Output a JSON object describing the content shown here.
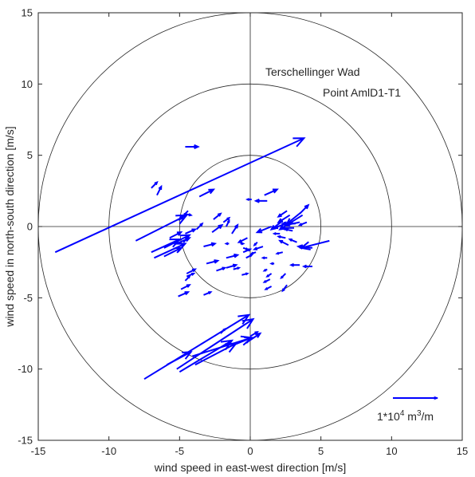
{
  "chart_data": {
    "type": "quiver",
    "title": "",
    "xlabel": "wind speed in east-west direction [m/s]",
    "ylabel": "wind speed in north-south direction [m/s]",
    "xlim": [
      -15,
      15
    ],
    "ylim": [
      -15,
      15
    ],
    "xticks": [
      -15,
      -10,
      -5,
      0,
      5,
      10,
      15
    ],
    "yticks": [
      -15,
      -10,
      -5,
      0,
      5,
      10,
      15
    ],
    "circle_radii": [
      5,
      10,
      15
    ],
    "axis_lines": true,
    "annotations": [
      "Terschellinger Wad",
      "Point AmlD1-T1"
    ],
    "scale_arrow": {
      "label": "1*10",
      "exponent": "4",
      "unit": " m",
      "unit_exponent": "3",
      "unit_tail": "/m"
    },
    "arrow_color": "#0000ff",
    "arrows": [
      {
        "x": -13.8,
        "y": -1.8,
        "u": 17.6,
        "v": 8.0
      },
      {
        "x": -8.1,
        "y": -1.0,
        "u": 3.6,
        "v": 1.8
      },
      {
        "x": -6.1,
        "y": -1.5,
        "u": 1.8,
        "v": 0.9
      },
      {
        "x": -7.0,
        "y": -1.8,
        "u": 2.0,
        "v": 0.9
      },
      {
        "x": -6.8,
        "y": -2.2,
        "u": 2.2,
        "v": 1.0
      },
      {
        "x": -6.1,
        "y": -2.1,
        "u": 1.2,
        "v": 0.6
      },
      {
        "x": -5.7,
        "y": -0.8,
        "u": 0.8,
        "v": 0.4
      },
      {
        "x": -5.2,
        "y": -1.2,
        "u": 0.9,
        "v": 0.4
      },
      {
        "x": -4.6,
        "y": -0.5,
        "u": 0.7,
        "v": 0.3
      },
      {
        "x": -6.6,
        "y": 2.2,
        "u": 0.3,
        "v": 0.6
      },
      {
        "x": -7.0,
        "y": 2.7,
        "u": 0.4,
        "v": 0.4
      },
      {
        "x": -4.6,
        "y": 5.6,
        "u": 0.9,
        "v": 0.0
      },
      {
        "x": -4.4,
        "y": 1.1,
        "u": -0.6,
        "v": -0.6
      },
      {
        "x": -3.6,
        "y": 2.1,
        "u": 1.0,
        "v": 0.5
      },
      {
        "x": -4.7,
        "y": 0.9,
        "u": 0.5,
        "v": -0.1
      },
      {
        "x": -3.8,
        "y": -0.2,
        "u": 0.4,
        "v": 0.4
      },
      {
        "x": -2.7,
        "y": -0.4,
        "u": 0.7,
        "v": 0.5
      },
      {
        "x": -2.6,
        "y": 0.5,
        "u": 0.5,
        "v": 0.4
      },
      {
        "x": -1.9,
        "y": 0.3,
        "u": 0.4,
        "v": 0.3
      },
      {
        "x": -1.3,
        "y": -0.5,
        "u": 0.4,
        "v": 0.6
      },
      {
        "x": -1.7,
        "y": 0.0,
        "u": 0.2,
        "v": 0.4
      },
      {
        "x": -1.5,
        "y": -1.2,
        "u": -0.2,
        "v": 0.0
      },
      {
        "x": -3.3,
        "y": -1.4,
        "u": 0.8,
        "v": 0.2
      },
      {
        "x": -1.7,
        "y": -2.2,
        "u": 0.8,
        "v": 0.2
      },
      {
        "x": -3.1,
        "y": -2.6,
        "u": 0.8,
        "v": 0.2
      },
      {
        "x": -1.7,
        "y": -2.9,
        "u": 0.7,
        "v": 0.2
      },
      {
        "x": -0.5,
        "y": -1.8,
        "u": 0.5,
        "v": 0.2
      },
      {
        "x": -0.3,
        "y": -2.2,
        "u": 0.4,
        "v": 0.2
      },
      {
        "x": -2.4,
        "y": -3.1,
        "u": 0.6,
        "v": 0.2
      },
      {
        "x": -1.2,
        "y": -3.0,
        "u": 0.4,
        "v": 0.1
      },
      {
        "x": -0.6,
        "y": -3.4,
        "u": 0.4,
        "v": 0.1
      },
      {
        "x": -0.7,
        "y": -1.2,
        "u": 0.2,
        "v": 0.0
      },
      {
        "x": -0.5,
        "y": -1.5,
        "u": 0.3,
        "v": -0.1
      },
      {
        "x": -4.5,
        "y": -3.3,
        "u": 0.6,
        "v": 0.3
      },
      {
        "x": -4.6,
        "y": -3.8,
        "u": 0.3,
        "v": 0.3
      },
      {
        "x": -5.1,
        "y": -4.9,
        "u": 0.7,
        "v": 0.3
      },
      {
        "x": -4.9,
        "y": -4.4,
        "u": 0.6,
        "v": 0.3
      },
      {
        "x": -4.5,
        "y": -3.5,
        "u": 0.5,
        "v": 0.2
      },
      {
        "x": -3.3,
        "y": -4.8,
        "u": 0.5,
        "v": 0.2
      },
      {
        "x": 1.2,
        "y": 1.8,
        "u": -0.8,
        "v": 0.0
      },
      {
        "x": 0.1,
        "y": 1.9,
        "u": -0.3,
        "v": 0.0
      },
      {
        "x": 1.0,
        "y": 2.2,
        "u": 0.9,
        "v": 0.4
      },
      {
        "x": 0.5,
        "y": -1.1,
        "u": -0.2,
        "v": -0.2
      },
      {
        "x": -0.2,
        "y": -0.8,
        "u": -0.6,
        "v": -0.3
      },
      {
        "x": 0.9,
        "y": -1.4,
        "u": -0.6,
        "v": -0.2
      },
      {
        "x": 0.4,
        "y": -1.8,
        "u": -0.3,
        "v": -0.1
      },
      {
        "x": 1.2,
        "y": -2.2,
        "u": -0.3,
        "v": 0.0
      },
      {
        "x": 1.2,
        "y": -3.0,
        "u": -0.2,
        "v": -0.1
      },
      {
        "x": 1.5,
        "y": -3.3,
        "u": -0.3,
        "v": -0.2
      },
      {
        "x": 1.4,
        "y": -3.7,
        "u": -0.4,
        "v": -0.2
      },
      {
        "x": 1.5,
        "y": -4.2,
        "u": -0.4,
        "v": -0.2
      },
      {
        "x": 1.7,
        "y": -2.6,
        "u": -0.2,
        "v": 0.0
      },
      {
        "x": 2.1,
        "y": -0.5,
        "u": -0.4,
        "v": 0.0
      },
      {
        "x": 2.5,
        "y": -0.8,
        "u": -0.5,
        "v": 0.1
      },
      {
        "x": 2.3,
        "y": -1.8,
        "u": -0.4,
        "v": -0.1
      },
      {
        "x": 2.5,
        "y": -3.3,
        "u": -0.3,
        "v": -0.3
      },
      {
        "x": 2.6,
        "y": -4.1,
        "u": -0.3,
        "v": -0.4
      },
      {
        "x": 2.5,
        "y": 0.2,
        "u": -0.8,
        "v": -0.3
      },
      {
        "x": 2.3,
        "y": 0.4,
        "u": -0.8,
        "v": -0.6
      },
      {
        "x": 2.8,
        "y": 0.8,
        "u": -0.8,
        "v": -0.5
      },
      {
        "x": 2.6,
        "y": 1.1,
        "u": -0.6,
        "v": -0.4
      },
      {
        "x": 3.7,
        "y": 0.8,
        "u": -1.6,
        "v": -1.0
      },
      {
        "x": 3.6,
        "y": 1.0,
        "u": -1.0,
        "v": -0.8
      },
      {
        "x": 3.5,
        "y": 0.3,
        "u": -1.0,
        "v": -0.2
      },
      {
        "x": 3.2,
        "y": 0.2,
        "u": -0.9,
        "v": 0.0
      },
      {
        "x": 3.1,
        "y": -0.1,
        "u": -0.9,
        "v": 0.0
      },
      {
        "x": 3.0,
        "y": -0.3,
        "u": -0.5,
        "v": 0.1
      },
      {
        "x": 3.5,
        "y": 0.9,
        "u": 0.6,
        "v": 0.6
      },
      {
        "x": 4.0,
        "y": 0.3,
        "u": -0.5,
        "v": -0.2
      },
      {
        "x": 3.3,
        "y": -1.1,
        "u": -0.5,
        "v": 0.2
      },
      {
        "x": 2.7,
        "y": -1.3,
        "u": -0.6,
        "v": 0.3
      },
      {
        "x": 4.4,
        "y": -1.5,
        "u": -1.0,
        "v": 0.1
      },
      {
        "x": 5.6,
        "y": -1.0,
        "u": -2.0,
        "v": -0.5
      },
      {
        "x": 4.4,
        "y": -2.8,
        "u": -0.6,
        "v": 0.0
      },
      {
        "x": 3.5,
        "y": -2.7,
        "u": -0.6,
        "v": 0.0
      },
      {
        "x": 1.5,
        "y": 0.0,
        "u": -1.0,
        "v": -0.4
      },
      {
        "x": -7.5,
        "y": -10.7,
        "u": 7.4,
        "v": 4.5
      },
      {
        "x": -5.2,
        "y": -10.0,
        "u": 5.4,
        "v": 3.5
      },
      {
        "x": -5.0,
        "y": -10.2,
        "u": 3.7,
        "v": 2.2
      },
      {
        "x": -4.1,
        "y": -9.1,
        "u": 4.2,
        "v": 1.3
      },
      {
        "x": -3.9,
        "y": -9.7,
        "u": 2.9,
        "v": 1.5
      },
      {
        "x": -5.9,
        "y": -9.7,
        "u": 1.7,
        "v": 0.9
      },
      {
        "x": -2.1,
        "y": -7.5,
        "u": 0.3,
        "v": 0.3
      },
      {
        "x": -0.2,
        "y": -8.1,
        "u": 0.9,
        "v": 0.6
      },
      {
        "x": 0.0,
        "y": -7.7,
        "u": 0.5,
        "v": 0.3
      },
      {
        "x": -1.4,
        "y": -8.4,
        "u": 1.5,
        "v": 0.6
      }
    ]
  }
}
